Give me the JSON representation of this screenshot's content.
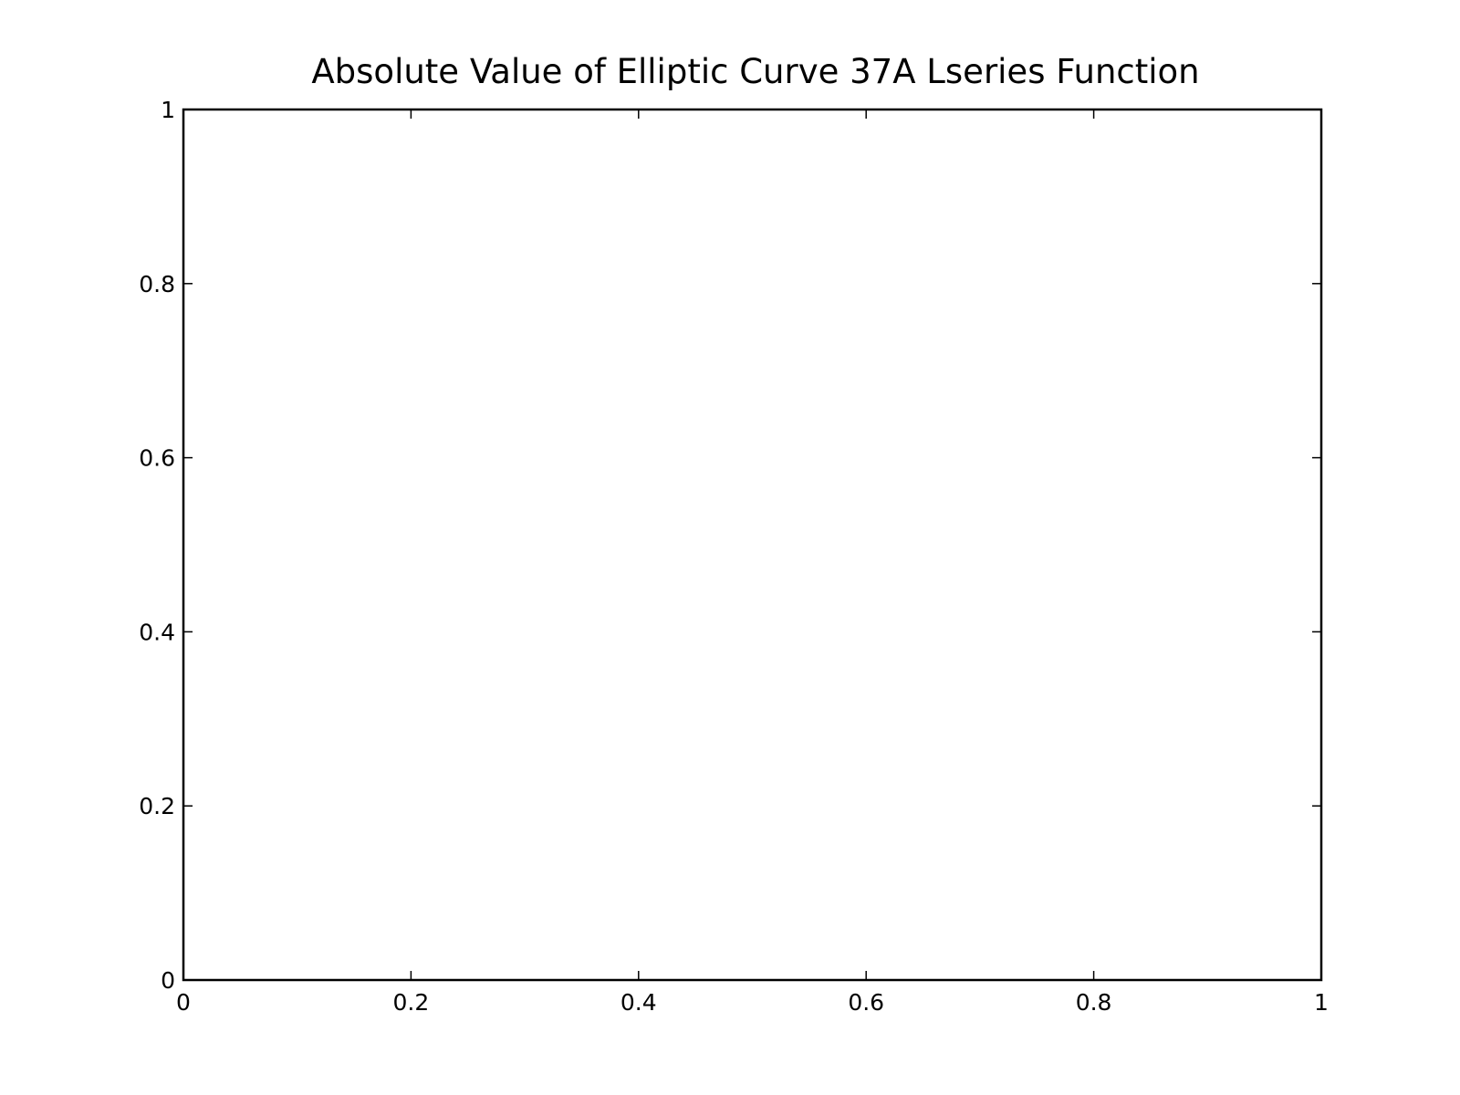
{
  "chart_data": {
    "type": "line",
    "title": "Absolute Value of Elliptic Curve 37A Lseries Function",
    "xlabel": "",
    "ylabel": "",
    "xlim": [
      0,
      1
    ],
    "ylim": [
      0,
      1
    ],
    "grid": false,
    "series": [],
    "x_ticks": [
      {
        "value": 0,
        "label": "0"
      },
      {
        "value": 0.2,
        "label": "0.2"
      },
      {
        "value": 0.4,
        "label": "0.4"
      },
      {
        "value": 0.6,
        "label": "0.6"
      },
      {
        "value": 0.8,
        "label": "0.8"
      },
      {
        "value": 1,
        "label": "1"
      }
    ],
    "y_ticks": [
      {
        "value": 0,
        "label": "0"
      },
      {
        "value": 0.2,
        "label": "0.2"
      },
      {
        "value": 0.4,
        "label": "0.4"
      },
      {
        "value": 0.6,
        "label": "0.6"
      },
      {
        "value": 0.8,
        "label": "0.8"
      },
      {
        "value": 1,
        "label": "1"
      }
    ]
  }
}
